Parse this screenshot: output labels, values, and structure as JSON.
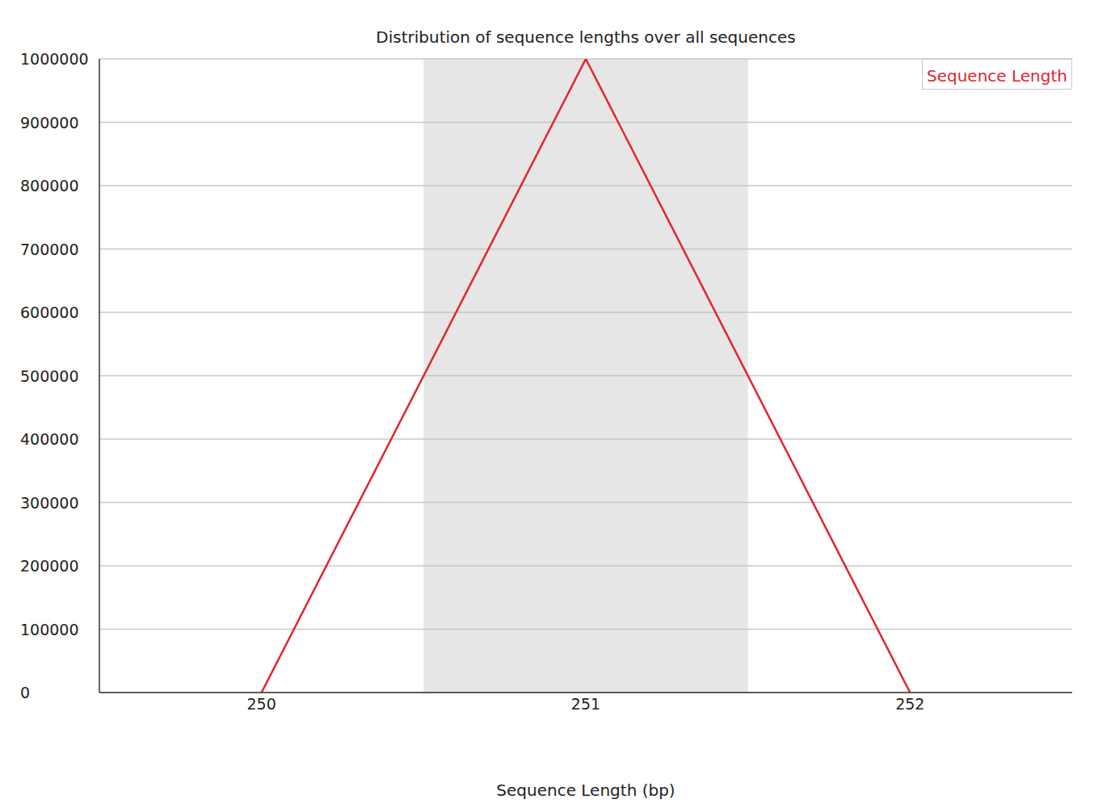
{
  "chart_data": {
    "type": "line",
    "title": "Distribution of sequence lengths over all sequences",
    "x_label": "Sequence Length (bp)",
    "x": [
      250,
      251,
      252
    ],
    "series": [
      {
        "name": "Sequence Length",
        "color": "#e0262e",
        "values": [
          0,
          1000000,
          0
        ]
      }
    ],
    "xlim": [
      249.5,
      252.5
    ],
    "xticks": [
      250,
      251,
      252
    ],
    "ylim": [
      0,
      1000000
    ],
    "yticks": [
      0,
      100000,
      200000,
      300000,
      400000,
      500000,
      600000,
      700000,
      800000,
      900000,
      1000000
    ],
    "grid": true,
    "legend": "top-right"
  }
}
